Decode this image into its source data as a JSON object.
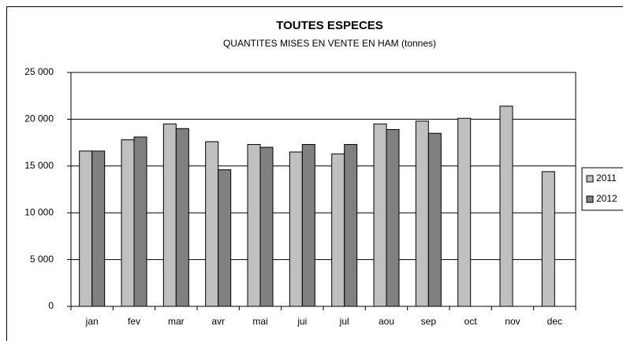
{
  "chart_data": {
    "type": "bar",
    "title": "TOUTES ESPECES",
    "subtitle": "QUANTITES MISES EN VENTE EN HAM (tonnes)",
    "categories": [
      "jan",
      "fev",
      "mar",
      "avr",
      "mai",
      "jui",
      "jul",
      "aou",
      "sep",
      "oct",
      "nov",
      "dec"
    ],
    "series": [
      {
        "name": "2011",
        "color": "#c0c0c0",
        "values": [
          16600,
          17800,
          19500,
          17600,
          17300,
          16500,
          16300,
          19500,
          19800,
          20100,
          21400,
          14400
        ]
      },
      {
        "name": "2012",
        "color": "#808080",
        "values": [
          16600,
          18100,
          19000,
          14600,
          17000,
          17300,
          17300,
          18900,
          18500,
          null,
          null,
          null
        ]
      }
    ],
    "ylim": [
      0,
      25000
    ],
    "yticks": [
      {
        "value": 0,
        "label": "0"
      },
      {
        "value": 5000,
        "label": "5 000"
      },
      {
        "value": 10000,
        "label": "10 000"
      },
      {
        "value": 15000,
        "label": "15 000"
      },
      {
        "value": 20000,
        "label": "20 000"
      },
      {
        "value": 25000,
        "label": "25 000"
      }
    ],
    "grid": true,
    "legend": "right"
  }
}
